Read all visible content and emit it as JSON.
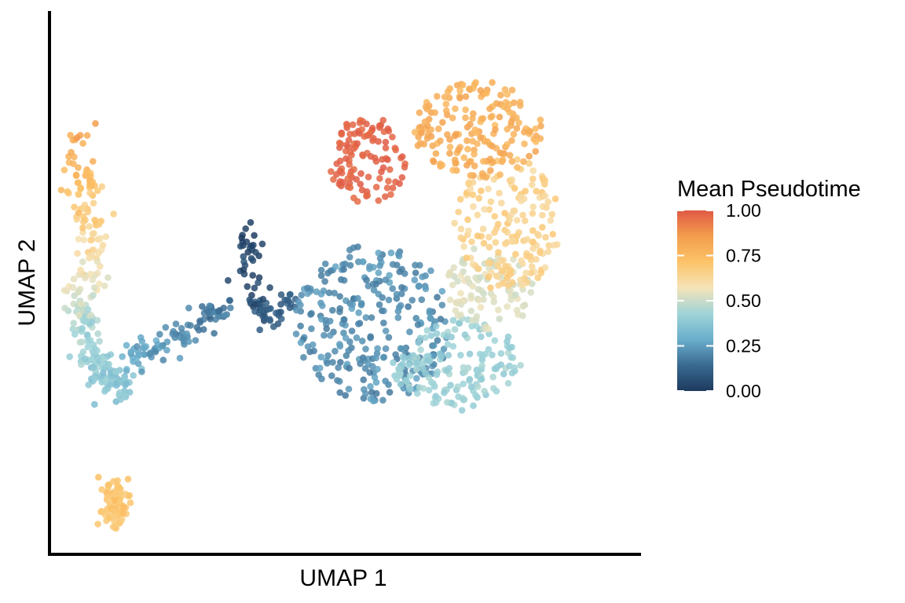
{
  "chart_data": {
    "type": "scatter",
    "title": "",
    "xlabel": "UMAP 1",
    "ylabel": "UMAP 2",
    "axis_ticks_shown": false,
    "grid": false,
    "colorbar": {
      "title": "Mean Pseudotime",
      "range": [
        0,
        1
      ],
      "ticks": [
        0,
        0.25,
        0.5,
        0.75,
        1
      ],
      "tick_labels": [
        "0.00",
        "0.25",
        "0.50",
        "0.75",
        "1.00"
      ],
      "placement": "right"
    },
    "palette": [
      "#1d3a5e",
      "#3a6a91",
      "#6aaecc",
      "#9fd4d8",
      "#f5e3b8",
      "#fcc368",
      "#f39d4c",
      "#e05a45"
    ],
    "clusters": [
      {
        "name": "left-arm",
        "path": [
          [
            -8.6,
            6.0
          ],
          [
            -8.4,
            4.3
          ],
          [
            -8.0,
            2.8
          ],
          [
            -8.2,
            1.2
          ],
          [
            -8.3,
            -0.3
          ],
          [
            -7.9,
            -1.8
          ],
          [
            -7.4,
            -2.6
          ],
          [
            -6.9,
            -2.2
          ]
        ],
        "pseudotime": [
          0.82,
          0.72,
          0.64,
          0.56,
          0.45,
          0.4,
          0.37,
          0.34
        ],
        "spread": 0.55,
        "n": 260
      },
      {
        "name": "bridge",
        "path": [
          [
            -6.9,
            -1.6
          ],
          [
            -5.6,
            -1.2
          ],
          [
            -4.3,
            -0.6
          ],
          [
            -3.2,
            0.2
          ]
        ],
        "pseudotime": [
          0.3,
          0.24,
          0.19,
          0.15
        ],
        "spread": 0.5,
        "n": 90
      },
      {
        "name": "stem",
        "path": [
          [
            -2.6,
            2.6
          ],
          [
            -2.4,
            0.8
          ],
          [
            -1.8,
            -0.2
          ],
          [
            -0.8,
            0.6
          ]
        ],
        "pseudotime": [
          0.02,
          0.05,
          0.1,
          0.13
        ],
        "spread": 0.45,
        "n": 80
      },
      {
        "name": "lower-island",
        "path": [
          [
            -7.2,
            -5.9
          ],
          [
            -7.2,
            -7.3
          ]
        ],
        "pseudotime": [
          0.7,
          0.7
        ],
        "spread": 0.45,
        "n": 85
      },
      {
        "name": "main-blue",
        "center": [
          2.0,
          -0.4
        ],
        "radii": [
          2.8,
          2.7
        ],
        "pseudotime": [
          0.17,
          0.27
        ],
        "n": 280
      },
      {
        "name": "main-lightblue",
        "center": [
          5.0,
          -1.8
        ],
        "radii": [
          2.3,
          1.6
        ],
        "pseudotime": [
          0.38,
          0.46
        ],
        "n": 160
      },
      {
        "name": "main-sage",
        "center": [
          6.2,
          0.8
        ],
        "radii": [
          1.6,
          1.5
        ],
        "pseudotime": [
          0.5,
          0.56
        ],
        "n": 90
      },
      {
        "name": "main-yellow",
        "center": [
          6.8,
          3.0
        ],
        "radii": [
          1.9,
          2.3
        ],
        "pseudotime": [
          0.6,
          0.7
        ],
        "n": 170
      },
      {
        "name": "main-orange",
        "center": [
          5.8,
          6.2
        ],
        "radii": [
          2.3,
          1.7
        ],
        "pseudotime": [
          0.74,
          0.84
        ],
        "n": 180
      },
      {
        "name": "main-red",
        "center": [
          1.8,
          5.2
        ],
        "radii": [
          1.4,
          1.5
        ],
        "pseudotime": [
          0.96,
          1.0
        ],
        "n": 110
      }
    ],
    "xlim": [
      -9.5,
      11.5
    ],
    "ylim": [
      -8.2,
      10.3
    ]
  }
}
